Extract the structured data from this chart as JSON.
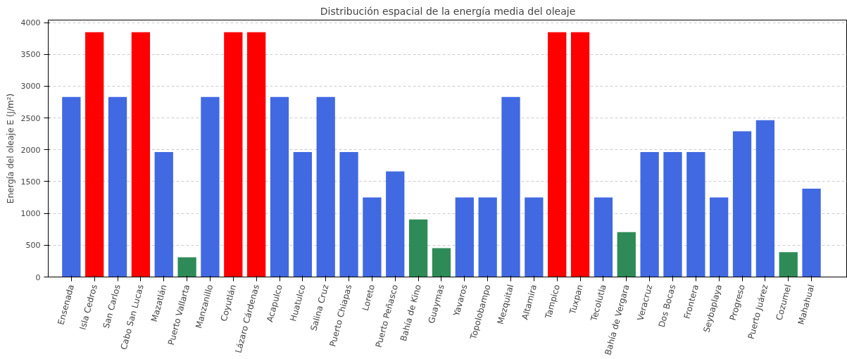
{
  "chart_data": {
    "type": "bar",
    "title": "Distribución espacial de la energía media del oleaje",
    "ylabel": "Energía del oleaje E (J/m²)",
    "categories": [
      "Ensenada",
      "Isla Cedros",
      "San Carlos",
      "Cabo San Lucas",
      "Mazatlán",
      "Puerto Vallarta",
      "Manzanillo",
      "Coyutlán",
      "Lázaro Cárdenas",
      "Acapulco",
      "Huatulco",
      "Salina Cruz",
      "Puerto Chiapas",
      "Loreto",
      "Puerto Peñasco",
      "Bahía de Kino",
      "Guaymas",
      "Yavaros",
      "Topolobampo",
      "Mezquital",
      "Altamira",
      "Tampico",
      "Tuxpan",
      "Tecolutla",
      "Bahía de Vergara",
      "Veracruz",
      "Dos Bocas",
      "Frontera",
      "Seybaplaya",
      "Progreso",
      "Puerto Juárez",
      "Cozumel",
      "Mahahual"
    ],
    "values": [
      2830,
      3850,
      2830,
      3850,
      1965,
      310,
      2830,
      3850,
      3850,
      2830,
      1965,
      2830,
      1965,
      1250,
      1660,
      905,
      455,
      1250,
      1250,
      2830,
      1250,
      3850,
      3850,
      1250,
      705,
      1965,
      1965,
      1965,
      1250,
      2290,
      2465,
      390,
      1390
    ],
    "colors": [
      "#4169e1",
      "#ff0000",
      "#4169e1",
      "#ff0000",
      "#4169e1",
      "#2e8b57",
      "#4169e1",
      "#ff0000",
      "#ff0000",
      "#4169e1",
      "#4169e1",
      "#4169e1",
      "#4169e1",
      "#4169e1",
      "#4169e1",
      "#2e8b57",
      "#2e8b57",
      "#4169e1",
      "#4169e1",
      "#4169e1",
      "#4169e1",
      "#ff0000",
      "#ff0000",
      "#4169e1",
      "#2e8b57",
      "#4169e1",
      "#4169e1",
      "#4169e1",
      "#4169e1",
      "#4169e1",
      "#4169e1",
      "#2e8b57",
      "#4169e1"
    ],
    "ylim": [
      0,
      4040
    ],
    "yticks": [
      0,
      500,
      1000,
      1500,
      2000,
      2500,
      3000,
      3500,
      4000
    ],
    "grid": "y"
  }
}
